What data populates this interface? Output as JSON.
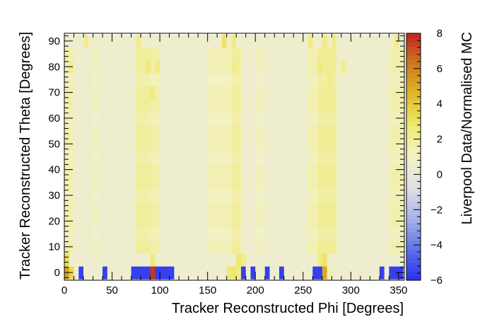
{
  "chart_data": {
    "type": "heatmap",
    "title": "",
    "xlabel": "Tracker Reconstructed Phi [Degrees]",
    "ylabel": "Tracker Reconstructed Theta [Degrees]",
    "zlabel": "Liverpool Data/Normalised MC",
    "xlim": [
      0,
      356
    ],
    "ylim": [
      -3,
      93
    ],
    "zlim": [
      -6,
      8
    ],
    "x_ticks": [
      0,
      50,
      100,
      150,
      200,
      250,
      300,
      350
    ],
    "y_ticks": [
      0,
      10,
      20,
      30,
      40,
      50,
      60,
      70,
      80,
      90
    ],
    "z_ticks": [
      -6,
      -4,
      -2,
      0,
      2,
      4,
      6,
      8
    ],
    "x_bin_width": 5,
    "y_bin_width": 5,
    "grid": false,
    "colorbar_position": "right",
    "colorscale": [
      "#2b2ff0",
      "#5b73e6",
      "#a6b2e8",
      "#dfe0e4",
      "#f2f2c8",
      "#f0ea70",
      "#dfbb2b",
      "#cf7a1d",
      "#c0241f"
    ],
    "background_value": 0.6,
    "yellow_phi_bands": [
      {
        "phi_start": 30,
        "phi_end": 35,
        "value": 1.2
      },
      {
        "phi_start": 75,
        "phi_end": 90,
        "value": 1.9
      },
      {
        "phi_start": 90,
        "phi_end": 100,
        "value": 1.6
      },
      {
        "phi_start": 150,
        "phi_end": 175,
        "value": 1.4
      },
      {
        "phi_start": 175,
        "phi_end": 185,
        "value": 1.9
      },
      {
        "phi_start": 200,
        "phi_end": 210,
        "value": 1.2
      },
      {
        "phi_start": 255,
        "phi_end": 265,
        "value": 1.5
      },
      {
        "phi_start": 265,
        "phi_end": 285,
        "value": 2.0
      },
      {
        "phi_start": 340,
        "phi_end": 356,
        "value": 1.5
      },
      {
        "phi_start": 0,
        "phi_end": 10,
        "value": 1.5
      }
    ],
    "top_row_hotspots": [
      {
        "phi": 20,
        "value": 2.3
      },
      {
        "phi": 75,
        "value": 2.2
      },
      {
        "phi": 165,
        "value": 3.0
      },
      {
        "phi": 175,
        "value": 2.4
      },
      {
        "phi": 255,
        "value": 2.4
      },
      {
        "phi": 270,
        "value": 2.4
      },
      {
        "phi": 280,
        "value": 2.3
      },
      {
        "phi": 345,
        "value": 2.2
      }
    ],
    "upper_hotspots": [
      {
        "phi": 85,
        "theta": 80,
        "value": 2.5
      },
      {
        "phi": 95,
        "theta": 80,
        "value": 2.4
      },
      {
        "phi": 90,
        "theta": 70,
        "value": 2.5
      },
      {
        "phi": 175,
        "theta": 80,
        "value": 2.2
      },
      {
        "phi": 265,
        "theta": 80,
        "value": 2.6
      },
      {
        "phi": 275,
        "theta": 75,
        "value": 2.3
      },
      {
        "phi": 290,
        "theta": 80,
        "value": 2.2
      },
      {
        "phi": 5,
        "theta": 80,
        "value": 2.1
      }
    ],
    "low_theta_row": [
      {
        "phi": 0,
        "value": 3.2
      },
      {
        "phi": 90,
        "value": 2.6
      },
      {
        "phi": 180,
        "value": 2.8
      },
      {
        "phi": 270,
        "value": 3.0
      },
      {
        "phi": 265,
        "value": 2.4
      },
      {
        "phi": 185,
        "value": 2.2
      }
    ],
    "bottom_row": [
      {
        "phi": 0,
        "value": 5.2
      },
      {
        "phi": 5,
        "value": 3.4
      },
      {
        "phi": 10,
        "value": 0.6
      },
      {
        "phi": 15,
        "value": -5.6
      },
      {
        "phi": 20,
        "value": 0.6
      },
      {
        "phi": 25,
        "value": 0.6
      },
      {
        "phi": 30,
        "value": 0.6
      },
      {
        "phi": 35,
        "value": 0.6
      },
      {
        "phi": 40,
        "value": -5.6
      },
      {
        "phi": 45,
        "value": 0.6
      },
      {
        "phi": 50,
        "value": 0.6
      },
      {
        "phi": 55,
        "value": 0.6
      },
      {
        "phi": 60,
        "value": 0.6
      },
      {
        "phi": 65,
        "value": 0.6
      },
      {
        "phi": 70,
        "value": -5.6
      },
      {
        "phi": 75,
        "value": -5.6
      },
      {
        "phi": 80,
        "value": -5.6
      },
      {
        "phi": 85,
        "value": -5.6
      },
      {
        "phi": 90,
        "value": 7.6
      },
      {
        "phi": 95,
        "value": -5.6
      },
      {
        "phi": 100,
        "value": -5.6
      },
      {
        "phi": 105,
        "value": -5.6
      },
      {
        "phi": 110,
        "value": -5.6
      },
      {
        "phi": 115,
        "value": 0.6
      },
      {
        "phi": 120,
        "value": 0.6
      },
      {
        "phi": 125,
        "value": 0.6
      },
      {
        "phi": 130,
        "value": 0.6
      },
      {
        "phi": 135,
        "value": 0.6
      },
      {
        "phi": 140,
        "value": 0.6
      },
      {
        "phi": 145,
        "value": 0.6
      },
      {
        "phi": 150,
        "value": 0.6
      },
      {
        "phi": 155,
        "value": 0.6
      },
      {
        "phi": 160,
        "value": 0.6
      },
      {
        "phi": 165,
        "value": 0.6
      },
      {
        "phi": 170,
        "value": 2.6
      },
      {
        "phi": 175,
        "value": 2.9
      },
      {
        "phi": 180,
        "value": 2.4
      },
      {
        "phi": 185,
        "value": -5.6
      },
      {
        "phi": 190,
        "value": 0.6
      },
      {
        "phi": 195,
        "value": -5.6
      },
      {
        "phi": 200,
        "value": 0.6
      },
      {
        "phi": 205,
        "value": 0.6
      },
      {
        "phi": 210,
        "value": -5.6
      },
      {
        "phi": 215,
        "value": 0.6
      },
      {
        "phi": 220,
        "value": 0.6
      },
      {
        "phi": 225,
        "value": -5.6
      },
      {
        "phi": 230,
        "value": 0.6
      },
      {
        "phi": 235,
        "value": 0.6
      },
      {
        "phi": 240,
        "value": 0.6
      },
      {
        "phi": 245,
        "value": 0.6
      },
      {
        "phi": 250,
        "value": 0.6
      },
      {
        "phi": 255,
        "value": 0.6
      },
      {
        "phi": 260,
        "value": -5.6
      },
      {
        "phi": 265,
        "value": -5.6
      },
      {
        "phi": 270,
        "value": 5.0
      },
      {
        "phi": 275,
        "value": 1.6
      },
      {
        "phi": 280,
        "value": 0.6
      },
      {
        "phi": 285,
        "value": 0.6
      },
      {
        "phi": 290,
        "value": 0.6
      },
      {
        "phi": 295,
        "value": 0.6
      },
      {
        "phi": 300,
        "value": 0.6
      },
      {
        "phi": 305,
        "value": 0.6
      },
      {
        "phi": 310,
        "value": 0.6
      },
      {
        "phi": 315,
        "value": 0.6
      },
      {
        "phi": 320,
        "value": 0.6
      },
      {
        "phi": 325,
        "value": 0.6
      },
      {
        "phi": 330,
        "value": -5.6
      },
      {
        "phi": 335,
        "value": 0.6
      },
      {
        "phi": 340,
        "value": -5.6
      },
      {
        "phi": 345,
        "value": -5.6
      },
      {
        "phi": 350,
        "value": -5.6
      }
    ]
  }
}
